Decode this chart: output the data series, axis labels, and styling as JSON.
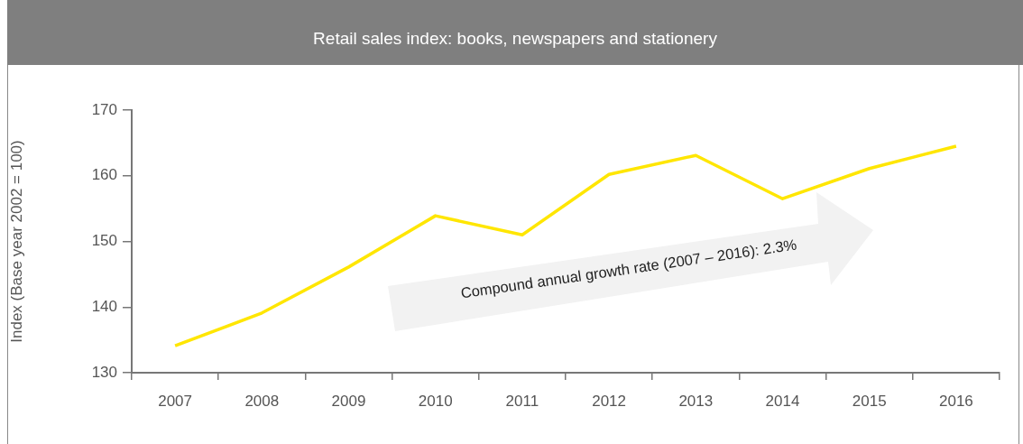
{
  "chart_data": {
    "type": "line",
    "title": "Retail sales index: books, newspapers and stationery",
    "ylabel": "Index (Base year 2002 = 100)",
    "categories": [
      "2007",
      "2008",
      "2009",
      "2010",
      "2011",
      "2012",
      "2013",
      "2014",
      "2015",
      "2016"
    ],
    "series": [
      {
        "color": "#ffe600",
        "values": [
          134.1,
          139.1,
          146.1,
          153.9,
          151.0,
          160.2,
          163.1,
          156.5,
          161.1,
          164.5
        ]
      }
    ],
    "ylim": [
      130,
      170
    ],
    "yticks": [
      130,
      140,
      150,
      160,
      170
    ],
    "annotations": [
      "Compound annual growth rate (2007 – 2016): 2.3%"
    ]
  }
}
